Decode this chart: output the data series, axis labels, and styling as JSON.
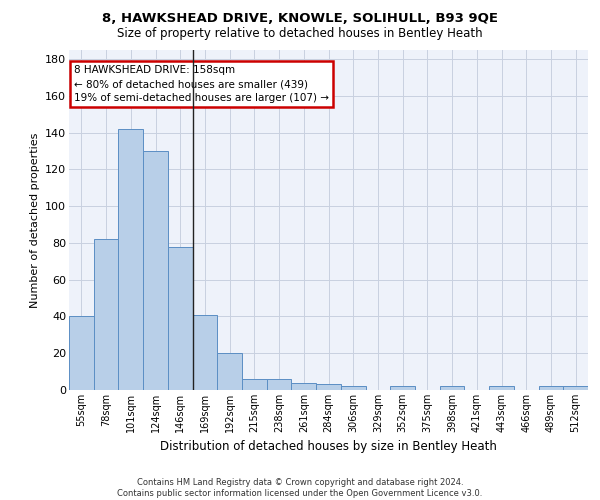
{
  "title1": "8, HAWKSHEAD DRIVE, KNOWLE, SOLIHULL, B93 9QE",
  "title2": "Size of property relative to detached houses in Bentley Heath",
  "xlabel": "Distribution of detached houses by size in Bentley Heath",
  "ylabel": "Number of detached properties",
  "categories": [
    "55sqm",
    "78sqm",
    "101sqm",
    "124sqm",
    "146sqm",
    "169sqm",
    "192sqm",
    "215sqm",
    "238sqm",
    "261sqm",
    "284sqm",
    "306sqm",
    "329sqm",
    "352sqm",
    "375sqm",
    "398sqm",
    "421sqm",
    "443sqm",
    "466sqm",
    "489sqm",
    "512sqm"
  ],
  "values": [
    40,
    82,
    142,
    130,
    78,
    41,
    20,
    6,
    6,
    4,
    3,
    2,
    0,
    2,
    0,
    2,
    0,
    2,
    0,
    2,
    2
  ],
  "bar_color": "#b8cfe8",
  "bar_edge_color": "#5b8ec4",
  "grid_color": "#c8d0e0",
  "bg_color": "#eef2fa",
  "annotation_text": "8 HAWKSHEAD DRIVE: 158sqm\n← 80% of detached houses are smaller (439)\n19% of semi-detached houses are larger (107) →",
  "annotation_box_color": "#ffffff",
  "annotation_box_edge": "#cc0000",
  "ylim": [
    0,
    185
  ],
  "yticks": [
    0,
    20,
    40,
    60,
    80,
    100,
    120,
    140,
    160,
    180
  ],
  "property_line_index": 4.5,
  "footnote": "Contains HM Land Registry data © Crown copyright and database right 2024.\nContains public sector information licensed under the Open Government Licence v3.0."
}
